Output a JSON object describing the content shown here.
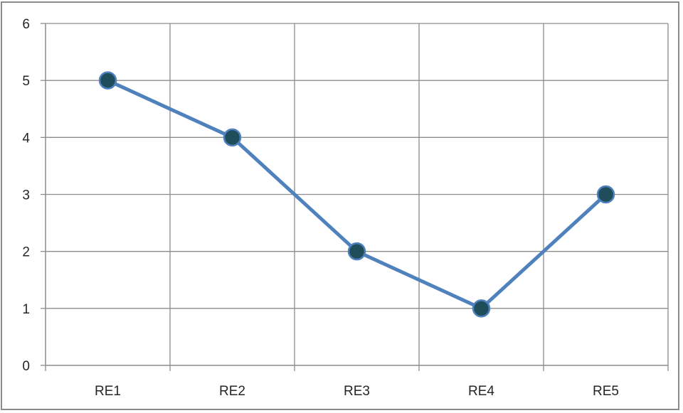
{
  "chart_data": {
    "type": "line",
    "title": "",
    "xlabel": "",
    "ylabel": "",
    "categories": [
      "RE1",
      "RE2",
      "RE3",
      "RE4",
      "RE5"
    ],
    "series": [
      {
        "values": [
          5,
          4,
          2,
          1,
          3
        ]
      }
    ],
    "ylim": [
      0,
      6
    ],
    "yticks": [
      "0",
      "1",
      "2",
      "3",
      "4",
      "5",
      "6"
    ],
    "grid": true,
    "legend": "none",
    "colors": {
      "line": "#4f81bd",
      "marker_fill": "#1f4e5a",
      "marker_stroke": "#4f81bd",
      "grid": "#8c8c8c",
      "axis": "#8c8c8c"
    }
  }
}
